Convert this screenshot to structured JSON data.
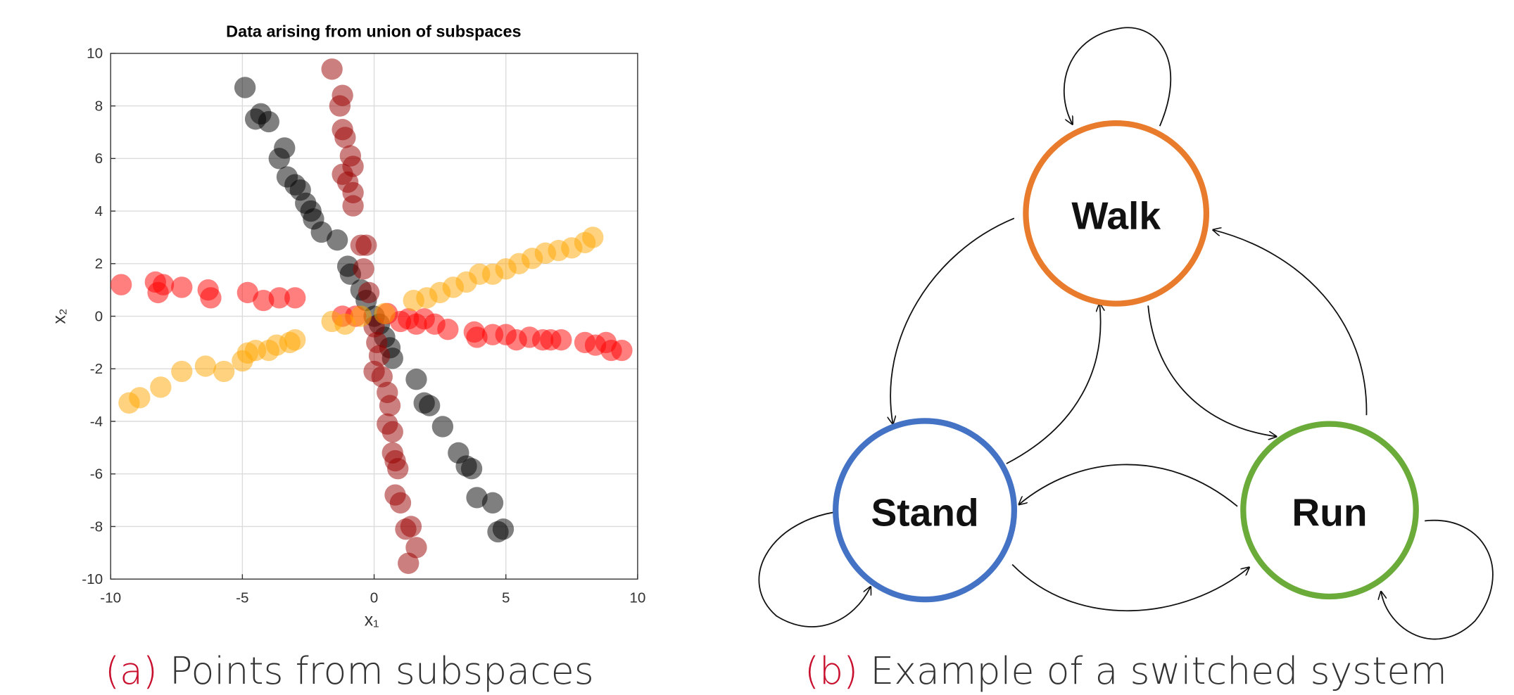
{
  "chart_data": {
    "type": "scatter",
    "title": "Data arising from union of subspaces",
    "xlabel": "x₁",
    "ylabel": "x₂",
    "xlim": [
      -10,
      10
    ],
    "ylim": [
      -10,
      10
    ],
    "xticks": [
      -10,
      -5,
      0,
      5,
      10
    ],
    "yticks": [
      -10,
      -8,
      -6,
      -4,
      -2,
      0,
      2,
      4,
      6,
      8,
      10
    ],
    "grid": true,
    "alpha": 0.5,
    "series": [
      {
        "color": "#000000",
        "x": [
          -4.9,
          -4.5,
          -4.3,
          -4.0,
          -3.6,
          -3.4,
          -3.3,
          -3.0,
          -2.8,
          -2.6,
          -2.4,
          -2.3,
          -2.0,
          -1.4,
          -1.0,
          -0.9,
          -0.5,
          -0.3,
          0.0,
          0.2,
          0.4,
          0.6,
          0.7,
          1.6,
          1.9,
          2.1,
          2.6,
          3.2,
          3.5,
          3.7,
          3.9,
          4.5,
          4.7,
          4.9
        ],
        "values": [
          8.7,
          7.5,
          7.7,
          7.4,
          6.0,
          6.4,
          5.3,
          5.0,
          4.8,
          4.3,
          4.0,
          3.7,
          3.2,
          2.9,
          1.9,
          1.6,
          1.0,
          0.6,
          0.0,
          -0.3,
          -0.8,
          -1.2,
          -1.6,
          -2.4,
          -3.3,
          -3.4,
          -4.2,
          -5.2,
          -5.7,
          -5.8,
          -6.9,
          -7.1,
          -8.2,
          -8.1
        ]
      },
      {
        "color": "#990000",
        "x": [
          -1.6,
          -1.2,
          -1.3,
          -1.2,
          -1.1,
          -0.9,
          -0.8,
          -1.2,
          -1.0,
          -0.8,
          -0.8,
          -0.5,
          -0.3,
          -0.4,
          -0.2,
          0.0,
          0.1,
          0.2,
          0.0,
          0.3,
          0.5,
          0.6,
          0.5,
          0.7,
          0.7,
          0.8,
          0.9,
          0.8,
          1.0,
          1.2,
          1.4,
          1.6,
          1.3
        ],
        "values": [
          9.4,
          8.4,
          8.0,
          7.1,
          6.8,
          6.1,
          5.7,
          5.4,
          5.1,
          4.7,
          4.2,
          2.7,
          2.7,
          1.8,
          0.9,
          -0.4,
          -1.0,
          -1.5,
          -2.1,
          -2.3,
          -2.9,
          -3.4,
          -4.1,
          -4.4,
          -5.2,
          -5.5,
          -5.8,
          -6.8,
          -7.1,
          -8.1,
          -8.0,
          -8.8,
          -9.4
        ]
      },
      {
        "color": "#ff0000",
        "x": [
          -9.6,
          -8.3,
          -8.2,
          -8.0,
          -7.3,
          -6.3,
          -6.2,
          -4.8,
          -4.2,
          -3.6,
          -3.0,
          -1.2,
          -0.7,
          0.5,
          1.0,
          1.3,
          1.6,
          1.9,
          2.3,
          2.8,
          3.8,
          3.9,
          4.5,
          5.0,
          5.4,
          5.9,
          6.4,
          6.7,
          7.1,
          8.0,
          8.4,
          8.8,
          9.0,
          9.4
        ],
        "values": [
          1.2,
          1.3,
          0.9,
          1.2,
          1.1,
          1.0,
          0.7,
          0.9,
          0.6,
          0.7,
          0.7,
          0.0,
          0.0,
          0.1,
          -0.2,
          -0.1,
          -0.3,
          -0.1,
          -0.3,
          -0.5,
          -0.6,
          -0.8,
          -0.7,
          -0.7,
          -0.9,
          -0.8,
          -0.9,
          -0.9,
          -0.9,
          -1.0,
          -1.1,
          -1.0,
          -1.3,
          -1.3
        ]
      },
      {
        "color": "#ffa500",
        "x": [
          -9.3,
          -8.9,
          -8.1,
          -7.3,
          -6.4,
          -5.7,
          -5.0,
          -4.8,
          -4.5,
          -4.0,
          -3.7,
          -3.2,
          -3.0,
          -1.6,
          -1.1,
          -0.5,
          0.4,
          1.5,
          2.0,
          2.5,
          3.0,
          3.5,
          4.0,
          4.5,
          5.0,
          5.5,
          6.0,
          6.5,
          7.0,
          7.5,
          8.0,
          8.3
        ],
        "values": [
          -3.3,
          -3.1,
          -2.7,
          -2.1,
          -1.9,
          -2.1,
          -1.7,
          -1.4,
          -1.3,
          -1.3,
          -1.1,
          -1.0,
          -0.9,
          -0.2,
          -0.3,
          0.0,
          0.1,
          0.6,
          0.7,
          0.9,
          1.1,
          1.3,
          1.6,
          1.6,
          1.8,
          2.0,
          2.2,
          2.4,
          2.5,
          2.6,
          2.8,
          3.0
        ]
      }
    ]
  },
  "diagram": {
    "nodes": [
      {
        "label": "Walk"
      },
      {
        "label": "Stand"
      },
      {
        "label": "Run"
      }
    ]
  },
  "captions": [
    {
      "tag": "(a)",
      "text": "Points from subspaces"
    },
    {
      "tag": "(b)",
      "text": "Example of a switched system"
    }
  ]
}
